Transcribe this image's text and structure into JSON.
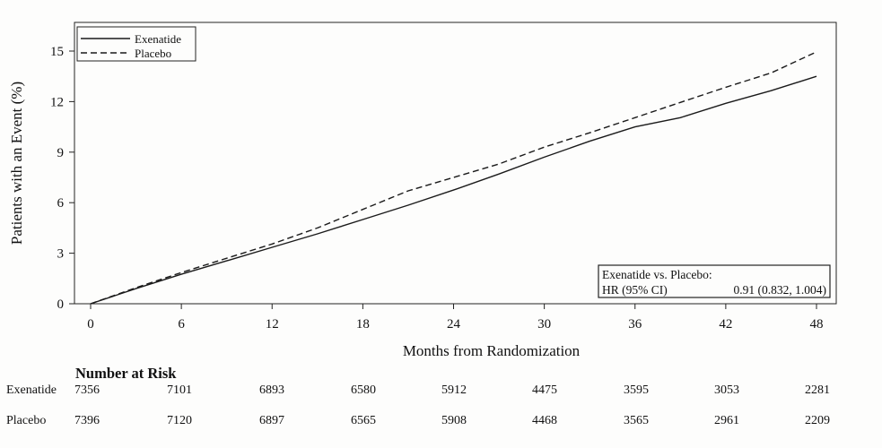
{
  "chart_data": {
    "type": "line",
    "xlabel": "Months from Randomization",
    "ylabel": "Patients with an Event (%)",
    "xlim": [
      0,
      48
    ],
    "ylim": [
      0,
      15
    ],
    "xticks": [
      0,
      6,
      12,
      18,
      24,
      30,
      36,
      42,
      48
    ],
    "yticks": [
      0,
      3,
      6,
      9,
      12,
      15
    ],
    "legend_position": "top-left",
    "grid": false,
    "series": [
      {
        "name": "Exenatide",
        "style": "solid",
        "color": "#1a1a1a",
        "x": [
          0,
          3,
          6,
          9,
          12,
          15,
          18,
          21,
          24,
          27,
          30,
          33,
          36,
          39,
          42,
          45,
          48
        ],
        "y": [
          0,
          0.9,
          1.75,
          2.55,
          3.35,
          4.15,
          5.0,
          5.85,
          6.75,
          7.7,
          8.7,
          9.65,
          10.5,
          11.05,
          11.9,
          12.65,
          13.5
        ]
      },
      {
        "name": "Placebo",
        "style": "dashed",
        "color": "#1a1a1a",
        "x": [
          0,
          3,
          6,
          9,
          12,
          15,
          18,
          21,
          24,
          27,
          30,
          33,
          36,
          39,
          42,
          45,
          48
        ],
        "y": [
          0,
          0.95,
          1.85,
          2.7,
          3.55,
          4.5,
          5.6,
          6.7,
          7.5,
          8.3,
          9.3,
          10.15,
          11.05,
          11.95,
          12.85,
          13.7,
          14.95
        ]
      }
    ],
    "annotation": {
      "title": "Exenatide vs. Placebo:",
      "label": "HR (95% CI)",
      "value": "0.91 (0.832, 1.004)"
    }
  },
  "risk_table": {
    "title": "Number at Risk",
    "rows": [
      {
        "label": "Exenatide",
        "values": [
          "7356",
          "7101",
          "6893",
          "6580",
          "5912",
          "4475",
          "3595",
          "3053",
          "2281"
        ]
      },
      {
        "label": "Placebo",
        "values": [
          "7396",
          "7120",
          "6897",
          "6565",
          "5908",
          "4468",
          "3565",
          "2961",
          "2209"
        ]
      }
    ]
  }
}
